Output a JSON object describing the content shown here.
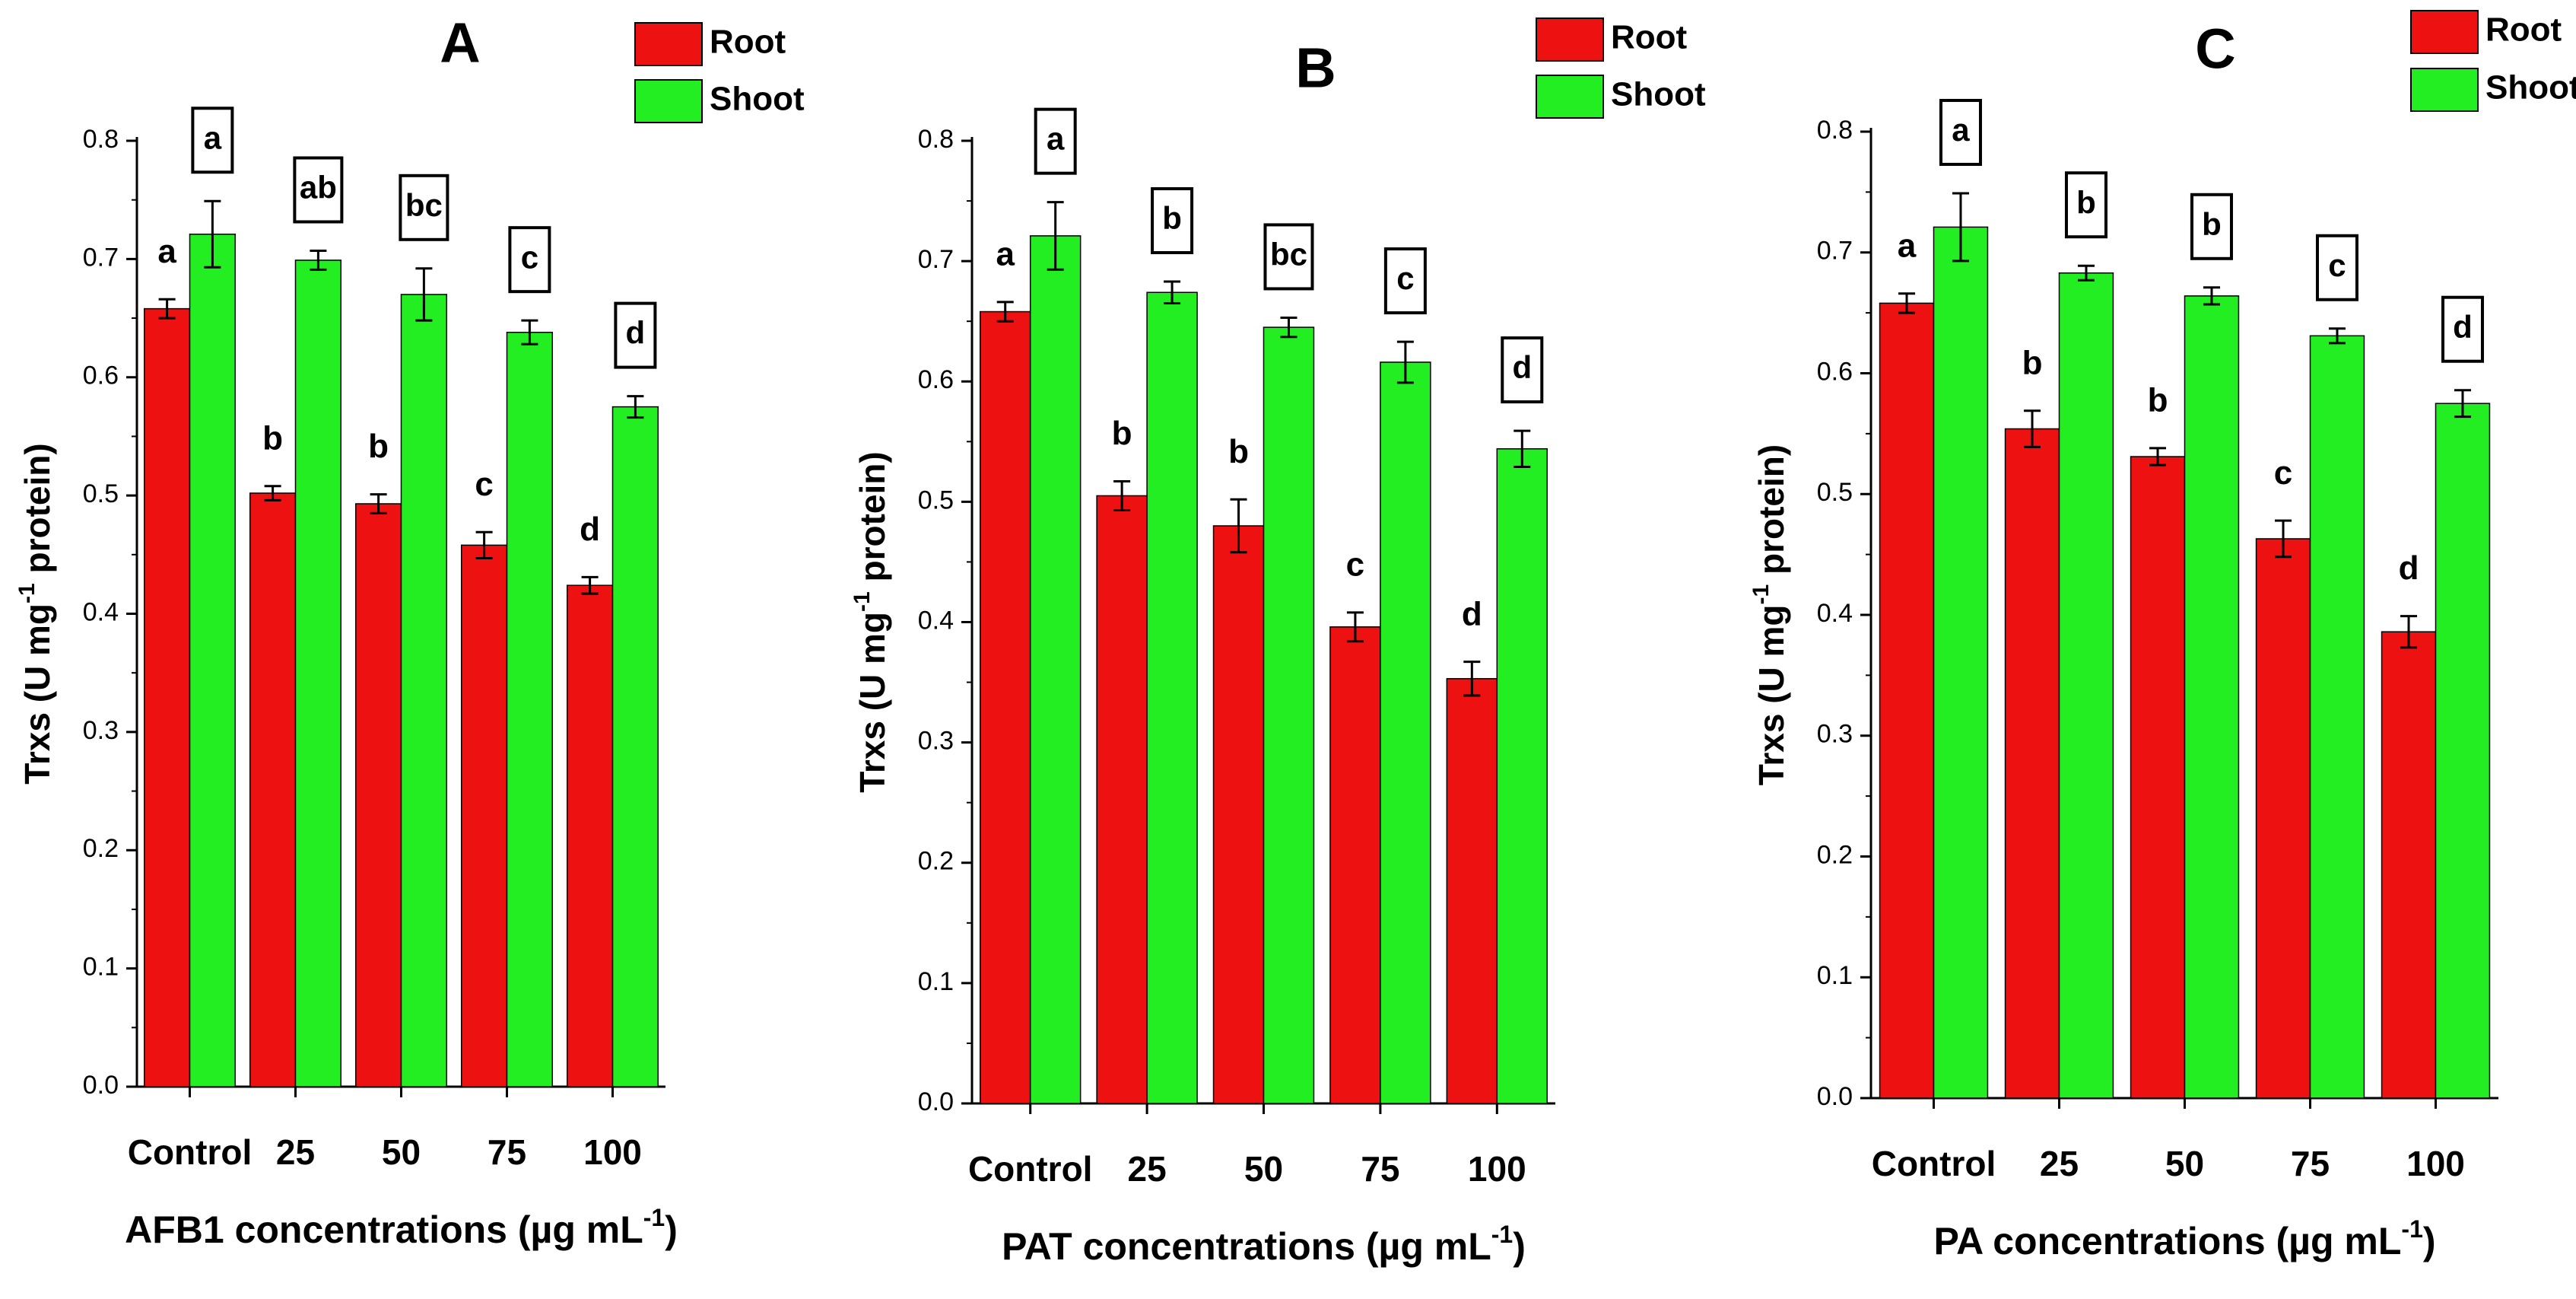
{
  "figure": {
    "colors": {
      "root": "#ee1111",
      "shoot": "#22ee22",
      "axis": "#000000"
    }
  },
  "chart_data": [
    {
      "type": "bar",
      "panel_label": "A",
      "xlabel": "AFB1 concentrations (µg mL",
      "xlabel_sup": "-1",
      "xlabel_close": ")",
      "ylabel": "Trxs (U mg",
      "ylabel_sup": "-1",
      "ylabel_close": " protein)",
      "ylim": [
        0,
        0.8
      ],
      "yticks": [
        "0.0",
        "0.1",
        "0.2",
        "0.3",
        "0.4",
        "0.5",
        "0.6",
        "0.7",
        "0.8"
      ],
      "categories": [
        "Control",
        "25",
        "50",
        "75",
        "100"
      ],
      "legend": [
        "Root",
        "Shoot"
      ],
      "series": [
        {
          "name": "Root",
          "values": [
            0.658,
            0.502,
            0.493,
            0.458,
            0.424
          ],
          "errors": [
            0.008,
            0.006,
            0.008,
            0.011,
            0.007
          ],
          "letters": [
            "a",
            "b",
            "b",
            "c",
            "d"
          ]
        },
        {
          "name": "Shoot",
          "values": [
            0.721,
            0.699,
            0.67,
            0.638,
            0.575
          ],
          "errors": [
            0.028,
            0.008,
            0.022,
            0.01,
            0.009
          ],
          "letters": [
            "a",
            "ab",
            "bc",
            "c",
            "d"
          ]
        }
      ]
    },
    {
      "type": "bar",
      "panel_label": "B",
      "xlabel": "PAT concentrations (µg mL",
      "xlabel_sup": "-1",
      "xlabel_close": ")",
      "ylabel": "Trxs (U mg",
      "ylabel_sup": "-1",
      "ylabel_close": " protein)",
      "ylim": [
        0,
        0.8
      ],
      "yticks": [
        "0.0",
        "0.1",
        "0.2",
        "0.3",
        "0.4",
        "0.5",
        "0.6",
        "0.7",
        "0.8"
      ],
      "categories": [
        "Control",
        "25",
        "50",
        "75",
        "100"
      ],
      "legend": [
        "Root",
        "Shoot"
      ],
      "series": [
        {
          "name": "Root",
          "values": [
            0.658,
            0.505,
            0.48,
            0.396,
            0.353
          ],
          "errors": [
            0.008,
            0.012,
            0.022,
            0.012,
            0.014
          ],
          "letters": [
            "a",
            "b",
            "b",
            "c",
            "d"
          ]
        },
        {
          "name": "Shoot",
          "values": [
            0.721,
            0.674,
            0.645,
            0.616,
            0.544
          ],
          "errors": [
            0.028,
            0.009,
            0.008,
            0.017,
            0.015
          ],
          "letters": [
            "a",
            "b",
            "bc",
            "c",
            "d"
          ]
        }
      ]
    },
    {
      "type": "bar",
      "panel_label": "C",
      "xlabel": "PA concentrations (µg mL",
      "xlabel_sup": "-1",
      "xlabel_close": ")",
      "ylabel": "Trxs (U mg",
      "ylabel_sup": "-1",
      "ylabel_close": " protein)",
      "ylim": [
        0,
        0.8
      ],
      "yticks": [
        "0.0",
        "0.1",
        "0.2",
        "0.3",
        "0.4",
        "0.5",
        "0.6",
        "0.7",
        "0.8"
      ],
      "categories": [
        "Control",
        "25",
        "50",
        "75",
        "100"
      ],
      "legend": [
        "Root",
        "Shoot"
      ],
      "series": [
        {
          "name": "Root",
          "values": [
            0.658,
            0.554,
            0.531,
            0.463,
            0.386
          ],
          "errors": [
            0.008,
            0.015,
            0.007,
            0.015,
            0.013
          ],
          "letters": [
            "a",
            "b",
            "b",
            "c",
            "d"
          ]
        },
        {
          "name": "Shoot",
          "values": [
            0.721,
            0.683,
            0.664,
            0.631,
            0.575
          ],
          "errors": [
            0.028,
            0.006,
            0.007,
            0.006,
            0.011
          ],
          "letters": [
            "a",
            "b",
            "b",
            "c",
            "d"
          ]
        }
      ]
    }
  ]
}
